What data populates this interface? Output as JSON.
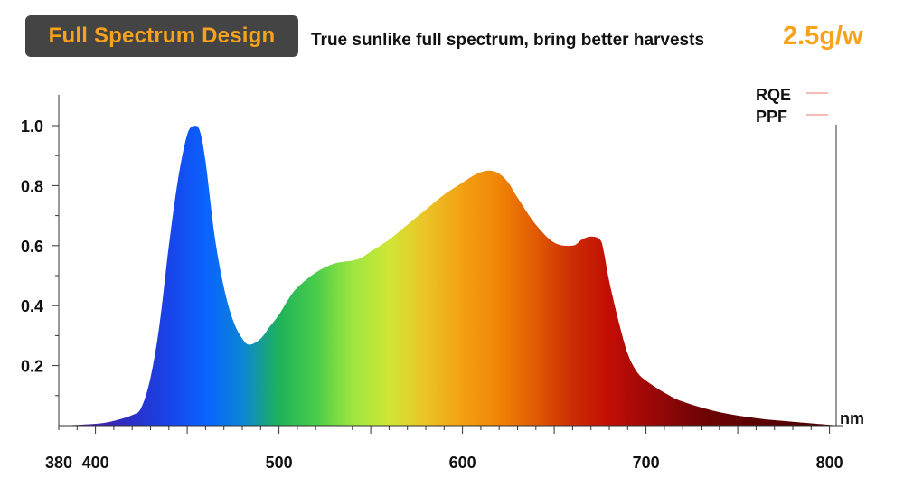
{
  "header": {
    "badge": "Full Spectrum Design",
    "tagline": "True sunlike full spectrum, bring better harvests",
    "efficacy": "2.5g/w"
  },
  "colors": {
    "badge_bg": "#444444",
    "accent": "#f7a21b",
    "legend_line": "#e8796c"
  },
  "chart_data": {
    "type": "area",
    "title": "",
    "xlabel": "",
    "ylabel": "",
    "x_unit": "nm",
    "xlim": [
      380,
      805
    ],
    "ylim": [
      0,
      1.1
    ],
    "x_ticks": [
      380,
      400,
      500,
      600,
      700,
      800
    ],
    "y_ticks": [
      0.2,
      0.4,
      0.6,
      0.8,
      1.0
    ],
    "y_tick_labels": [
      "0.2",
      "0.4",
      "0.6",
      "0.8",
      "1.0"
    ],
    "legend": {
      "position": "top-right",
      "entries": [
        "RQE",
        "PPF"
      ]
    },
    "fill": "wavelength-colored gradient (violet → blue → green → yellow → orange → red → dark red)",
    "series": [
      {
        "x": [
          380,
          400,
          410,
          420,
          425,
          430,
          435,
          440,
          445,
          450,
          454,
          457,
          460,
          465,
          470,
          475,
          480,
          484,
          490,
          495,
          500,
          505,
          510,
          520,
          530,
          540,
          545,
          550,
          560,
          570,
          580,
          590,
          600,
          605,
          610,
          615,
          620,
          625,
          630,
          640,
          650,
          660,
          665,
          670,
          675,
          677,
          680,
          685,
          690,
          695,
          700,
          710,
          720,
          740,
          760,
          780,
          805
        ],
        "y": [
          0.0,
          0.006,
          0.016,
          0.035,
          0.06,
          0.16,
          0.34,
          0.6,
          0.82,
          0.97,
          0.999,
          0.98,
          0.88,
          0.63,
          0.46,
          0.35,
          0.29,
          0.27,
          0.29,
          0.33,
          0.37,
          0.42,
          0.46,
          0.51,
          0.54,
          0.55,
          0.56,
          0.58,
          0.62,
          0.67,
          0.72,
          0.77,
          0.81,
          0.83,
          0.845,
          0.85,
          0.84,
          0.81,
          0.76,
          0.67,
          0.61,
          0.6,
          0.62,
          0.63,
          0.62,
          0.58,
          0.48,
          0.35,
          0.24,
          0.18,
          0.15,
          0.11,
          0.08,
          0.045,
          0.025,
          0.013,
          0.0
        ]
      }
    ]
  }
}
